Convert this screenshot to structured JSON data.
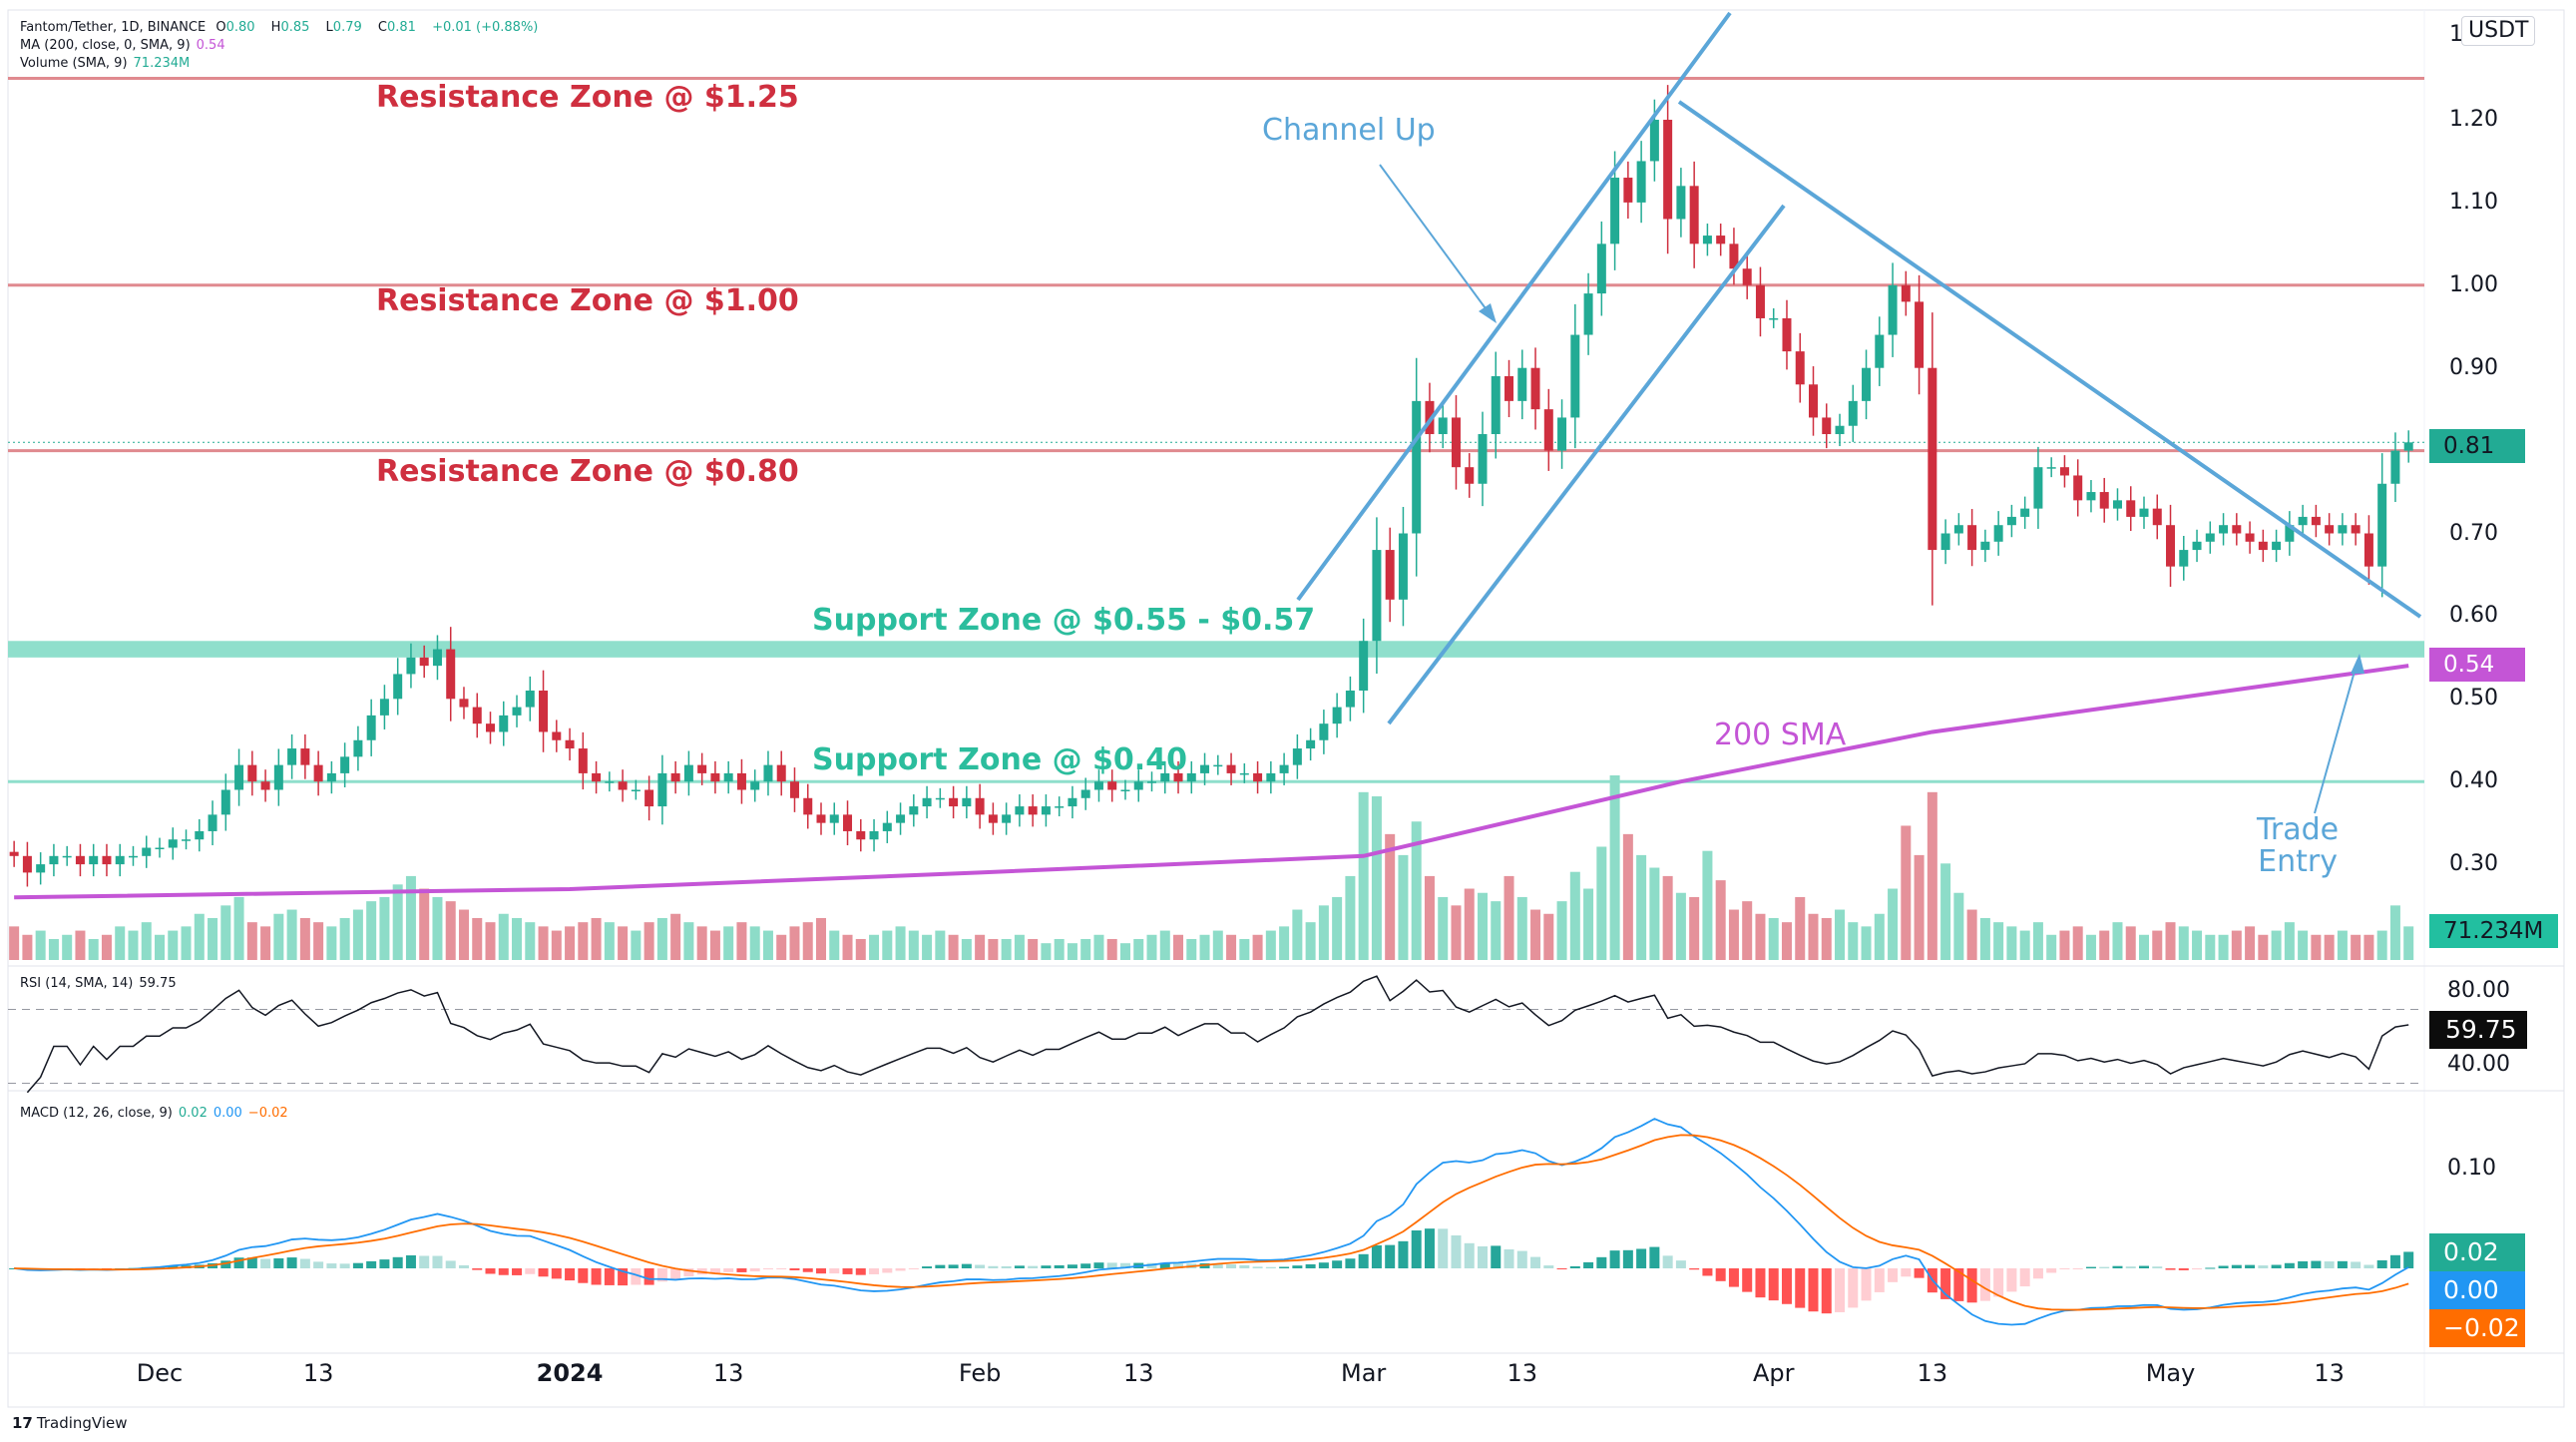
{
  "header": {
    "symbol": "Fantom/Tether, 1D, BINANCE",
    "o_label": "O",
    "o": "0.80",
    "h_label": "H",
    "h": "0.85",
    "l_label": "L",
    "l": "0.79",
    "c_label": "C",
    "c": "0.81",
    "change": "+0.01 (+0.88%)",
    "ma_label": "MA (200, close, 0, SMA, 9)",
    "ma_value": "0.54",
    "vol_label": "Volume (SMA, 9)",
    "vol_value": "71.234M",
    "rsi_label": "RSI (14, SMA, 14)",
    "rsi_value": "59.75",
    "macd_label": "MACD (12, 26, close, 9)",
    "macd_hist": "0.02",
    "macd_line": "0.00",
    "macd_signal": "−0.02"
  },
  "axis": {
    "currency": "USDT",
    "top_partial": "1",
    "price_ticks": [
      "1.20",
      "1.10",
      "1.00",
      "0.90",
      "0.70",
      "0.60",
      "0.50",
      "0.40",
      "0.30"
    ],
    "rsi_ticks": [
      "80.00",
      "40.00"
    ],
    "macd_ticks": [
      "0.10"
    ],
    "badges": {
      "last_price": "0.81",
      "ma": "0.54",
      "volume": "71.234M",
      "rsi": "59.75",
      "macd_hist": "0.02",
      "macd_line": "0.00",
      "macd_signal": "−0.02"
    }
  },
  "annotations": {
    "r125": "Resistance Zone @ $1.25",
    "r100": "Resistance Zone @ $1.00",
    "r080": "Resistance Zone @ $0.80",
    "s055": "Support Zone @ $0.55 - $0.57",
    "s040": "Support Zone @ $0.40",
    "channel": "Channel Up",
    "sma": "200 SMA",
    "entry1": "Trade",
    "entry2": "Entry"
  },
  "brand": "TradingView",
  "colors": {
    "up": "#22ab94",
    "down": "#cf2f3f",
    "vol_up": "#8ddcc8",
    "vol_down": "#e5919a",
    "resistance": "#e08a8f",
    "support": "#8fdfcc",
    "ma": "#c455d6",
    "trend": "#5ba6d8",
    "macd": "#2196f3",
    "signal": "#ff6d00"
  },
  "chart_data": {
    "type": "candlestick",
    "start_date": "2023-11-20",
    "interval": "1D",
    "ylim": [
      0.2,
      1.3
    ],
    "closes": [
      0.31,
      0.29,
      0.3,
      0.31,
      0.31,
      0.3,
      0.31,
      0.3,
      0.31,
      0.31,
      0.32,
      0.32,
      0.33,
      0.33,
      0.34,
      0.36,
      0.39,
      0.42,
      0.4,
      0.39,
      0.42,
      0.44,
      0.42,
      0.4,
      0.41,
      0.43,
      0.45,
      0.48,
      0.5,
      0.53,
      0.55,
      0.54,
      0.56,
      0.5,
      0.49,
      0.47,
      0.46,
      0.48,
      0.49,
      0.51,
      0.46,
      0.45,
      0.44,
      0.41,
      0.4,
      0.4,
      0.39,
      0.39,
      0.37,
      0.41,
      0.4,
      0.42,
      0.41,
      0.4,
      0.41,
      0.39,
      0.4,
      0.42,
      0.4,
      0.38,
      0.36,
      0.35,
      0.36,
      0.34,
      0.33,
      0.34,
      0.35,
      0.36,
      0.37,
      0.38,
      0.38,
      0.37,
      0.38,
      0.36,
      0.35,
      0.36,
      0.37,
      0.36,
      0.37,
      0.37,
      0.38,
      0.39,
      0.4,
      0.39,
      0.39,
      0.4,
      0.4,
      0.41,
      0.4,
      0.41,
      0.42,
      0.42,
      0.41,
      0.41,
      0.4,
      0.41,
      0.42,
      0.44,
      0.45,
      0.47,
      0.49,
      0.51,
      0.57,
      0.68,
      0.62,
      0.7,
      0.86,
      0.82,
      0.84,
      0.78,
      0.76,
      0.82,
      0.89,
      0.86,
      0.9,
      0.85,
      0.8,
      0.84,
      0.94,
      0.99,
      1.05,
      1.13,
      1.1,
      1.15,
      1.2,
      1.08,
      1.12,
      1.05,
      1.06,
      1.05,
      1.02,
      1.0,
      0.96,
      0.96,
      0.92,
      0.88,
      0.84,
      0.82,
      0.83,
      0.86,
      0.9,
      0.94,
      1.0,
      0.98,
      0.9,
      0.68,
      0.7,
      0.71,
      0.68,
      0.69,
      0.71,
      0.72,
      0.73,
      0.78,
      0.78,
      0.77,
      0.74,
      0.75,
      0.73,
      0.74,
      0.72,
      0.73,
      0.71,
      0.66,
      0.68,
      0.69,
      0.7,
      0.71,
      0.7,
      0.69,
      0.68,
      0.69,
      0.71,
      0.72,
      0.71,
      0.7,
      0.71,
      0.7,
      0.66,
      0.76,
      0.8,
      0.81
    ],
    "volume_m": [
      80,
      60,
      70,
      50,
      60,
      70,
      50,
      60,
      80,
      70,
      90,
      60,
      70,
      80,
      110,
      100,
      130,
      150,
      90,
      80,
      110,
      120,
      100,
      90,
      80,
      100,
      120,
      140,
      150,
      180,
      200,
      170,
      150,
      140,
      120,
      100,
      90,
      110,
      100,
      90,
      80,
      70,
      80,
      90,
      100,
      90,
      80,
      70,
      90,
      100,
      110,
      90,
      80,
      70,
      80,
      90,
      80,
      70,
      60,
      80,
      90,
      100,
      70,
      60,
      50,
      60,
      70,
      80,
      70,
      60,
      70,
      60,
      50,
      60,
      50,
      50,
      60,
      50,
      40,
      50,
      40,
      50,
      60,
      50,
      40,
      50,
      60,
      70,
      60,
      50,
      60,
      70,
      60,
      50,
      60,
      70,
      80,
      120,
      90,
      130,
      150,
      200,
      400,
      390,
      300,
      250,
      330,
      200,
      150,
      130,
      170,
      160,
      140,
      200,
      150,
      120,
      110,
      140,
      210,
      170,
      270,
      440,
      300,
      250,
      220,
      200,
      160,
      150,
      260,
      190,
      120,
      140,
      110,
      100,
      90,
      150,
      110,
      100,
      120,
      90,
      80,
      110,
      170,
      320,
      250,
      400,
      230,
      160,
      120,
      100,
      90,
      80,
      70,
      90,
      60,
      70,
      80,
      60,
      70,
      90,
      80,
      60,
      70,
      90,
      80,
      70,
      60,
      60,
      70,
      80,
      60,
      70,
      90,
      70,
      60,
      60,
      70,
      60,
      60,
      70,
      130,
      80
    ],
    "ma200": [
      [
        "2023-11-20",
        0.26
      ],
      [
        "2024-01-01",
        0.27
      ],
      [
        "2024-02-01",
        0.29
      ],
      [
        "2024-03-01",
        0.31
      ],
      [
        "2024-03-25",
        0.4
      ],
      [
        "2024-04-13",
        0.46
      ],
      [
        "2024-05-19",
        0.54
      ]
    ],
    "levels": {
      "resistance": [
        1.25,
        1.0,
        0.8
      ],
      "support_zone": [
        0.55,
        0.57
      ],
      "support": [
        0.4
      ]
    },
    "x_ticks": [
      [
        "2023-12-01",
        "Dec"
      ],
      [
        "2023-12-13",
        "13"
      ],
      [
        "2024-01-01",
        "2024"
      ],
      [
        "2024-01-13",
        "13"
      ],
      [
        "2024-02-01",
        "Feb"
      ],
      [
        "2024-02-13",
        "13"
      ],
      [
        "2024-03-01",
        "Mar"
      ],
      [
        "2024-03-13",
        "13"
      ],
      [
        "2024-04-01",
        "Apr"
      ],
      [
        "2024-04-13",
        "13"
      ],
      [
        "2024-05-01",
        "May"
      ],
      [
        "2024-05-13",
        "13"
      ]
    ],
    "rsi_bands": [
      70,
      30
    ]
  }
}
